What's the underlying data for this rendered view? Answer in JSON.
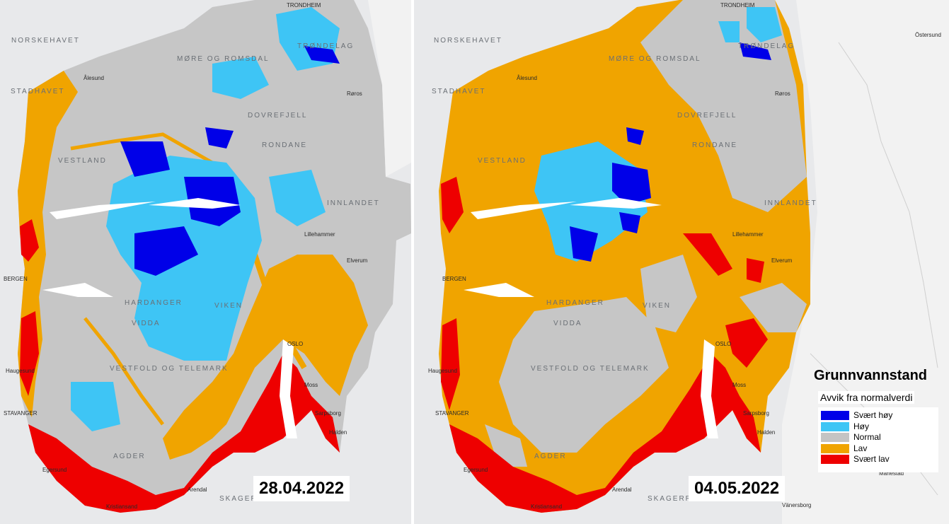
{
  "legend": {
    "title": "Grunnvannstand",
    "subtitle": "Avvik fra normalverdi",
    "items": [
      {
        "label": "Svært høy",
        "color": "#0000e8"
      },
      {
        "label": "Høy",
        "color": "#3ec5f5"
      },
      {
        "label": "Normal",
        "color": "#c4c4c4"
      },
      {
        "label": "Lav",
        "color": "#f0a400"
      },
      {
        "label": "Svært lav",
        "color": "#ee0000"
      }
    ]
  },
  "maps": [
    {
      "date": "28.04.2022",
      "labels": {
        "norskehavet": "NORSKEHAVET",
        "stadhavet": "STADHAVET",
        "trondheim": "TRONDHEIM",
        "trondelag": "TRØNDELAG",
        "more_romsdal": "MØRE OG ROMSDAL",
        "dovrefjell": "DOVREFJELL",
        "rondane": "RONDANE",
        "innlandet": "INNLANDET",
        "vestland": "VESTLAND",
        "hardanger": "HARDANGER",
        "vidda": "VIDDA",
        "viken": "VIKEN",
        "vestfold": "VESTFOLD OG TELEMARK",
        "agder": "AGDER",
        "skagerrak": "SKAGERRAK",
        "bergen": "BERGEN",
        "stavanger": "STAVANGER",
        "oslo": "OSLO",
        "alesund": "Ålesund",
        "lillehammer": "Lillehammer",
        "elverum": "Elverum",
        "kristiansand": "Kristiansand",
        "arendal": "Arendal",
        "moss": "Moss",
        "sarpsborg": "Sarpsborg",
        "haugesund": "Haugesund",
        "egersund": "Egersund",
        "roros": "Røros",
        "halden": "Halden"
      }
    },
    {
      "date": "04.05.2022",
      "labels": {
        "norskehavet": "NORSKEHAVET",
        "stadhavet": "STADHAVET",
        "trondheim": "TRONDHEIM",
        "trondelag": "TRØNDELAG",
        "more_romsdal": "MØRE OG ROMSDAL",
        "dovrefjell": "DOVREFJELL",
        "rondane": "RONDANE",
        "innlandet": "INNLANDET",
        "vestland": "VESTLAND",
        "hardanger": "HARDANGER",
        "vidda": "VIDDA",
        "viken": "VIKEN",
        "vestfold": "VESTFOLD OG TELEMARK",
        "agder": "AGDER",
        "skagerrak": "SKAGERRAK",
        "bergen": "BERGEN",
        "stavanger": "STAVANGER",
        "oslo": "OSLO",
        "alesund": "Ålesund",
        "lillehammer": "Lillehammer",
        "elverum": "Elverum",
        "kristiansand": "Kristiansand",
        "arendal": "Arendal",
        "moss": "Moss",
        "sarpsborg": "Sarpsborg",
        "haugesund": "Haugesund",
        "egersund": "Egersund",
        "roros": "Røros",
        "halden": "Halden",
        "ostersund": "Östersund",
        "mariestad": "Mariestad",
        "vanersborg": "Vänersborg"
      }
    }
  ]
}
